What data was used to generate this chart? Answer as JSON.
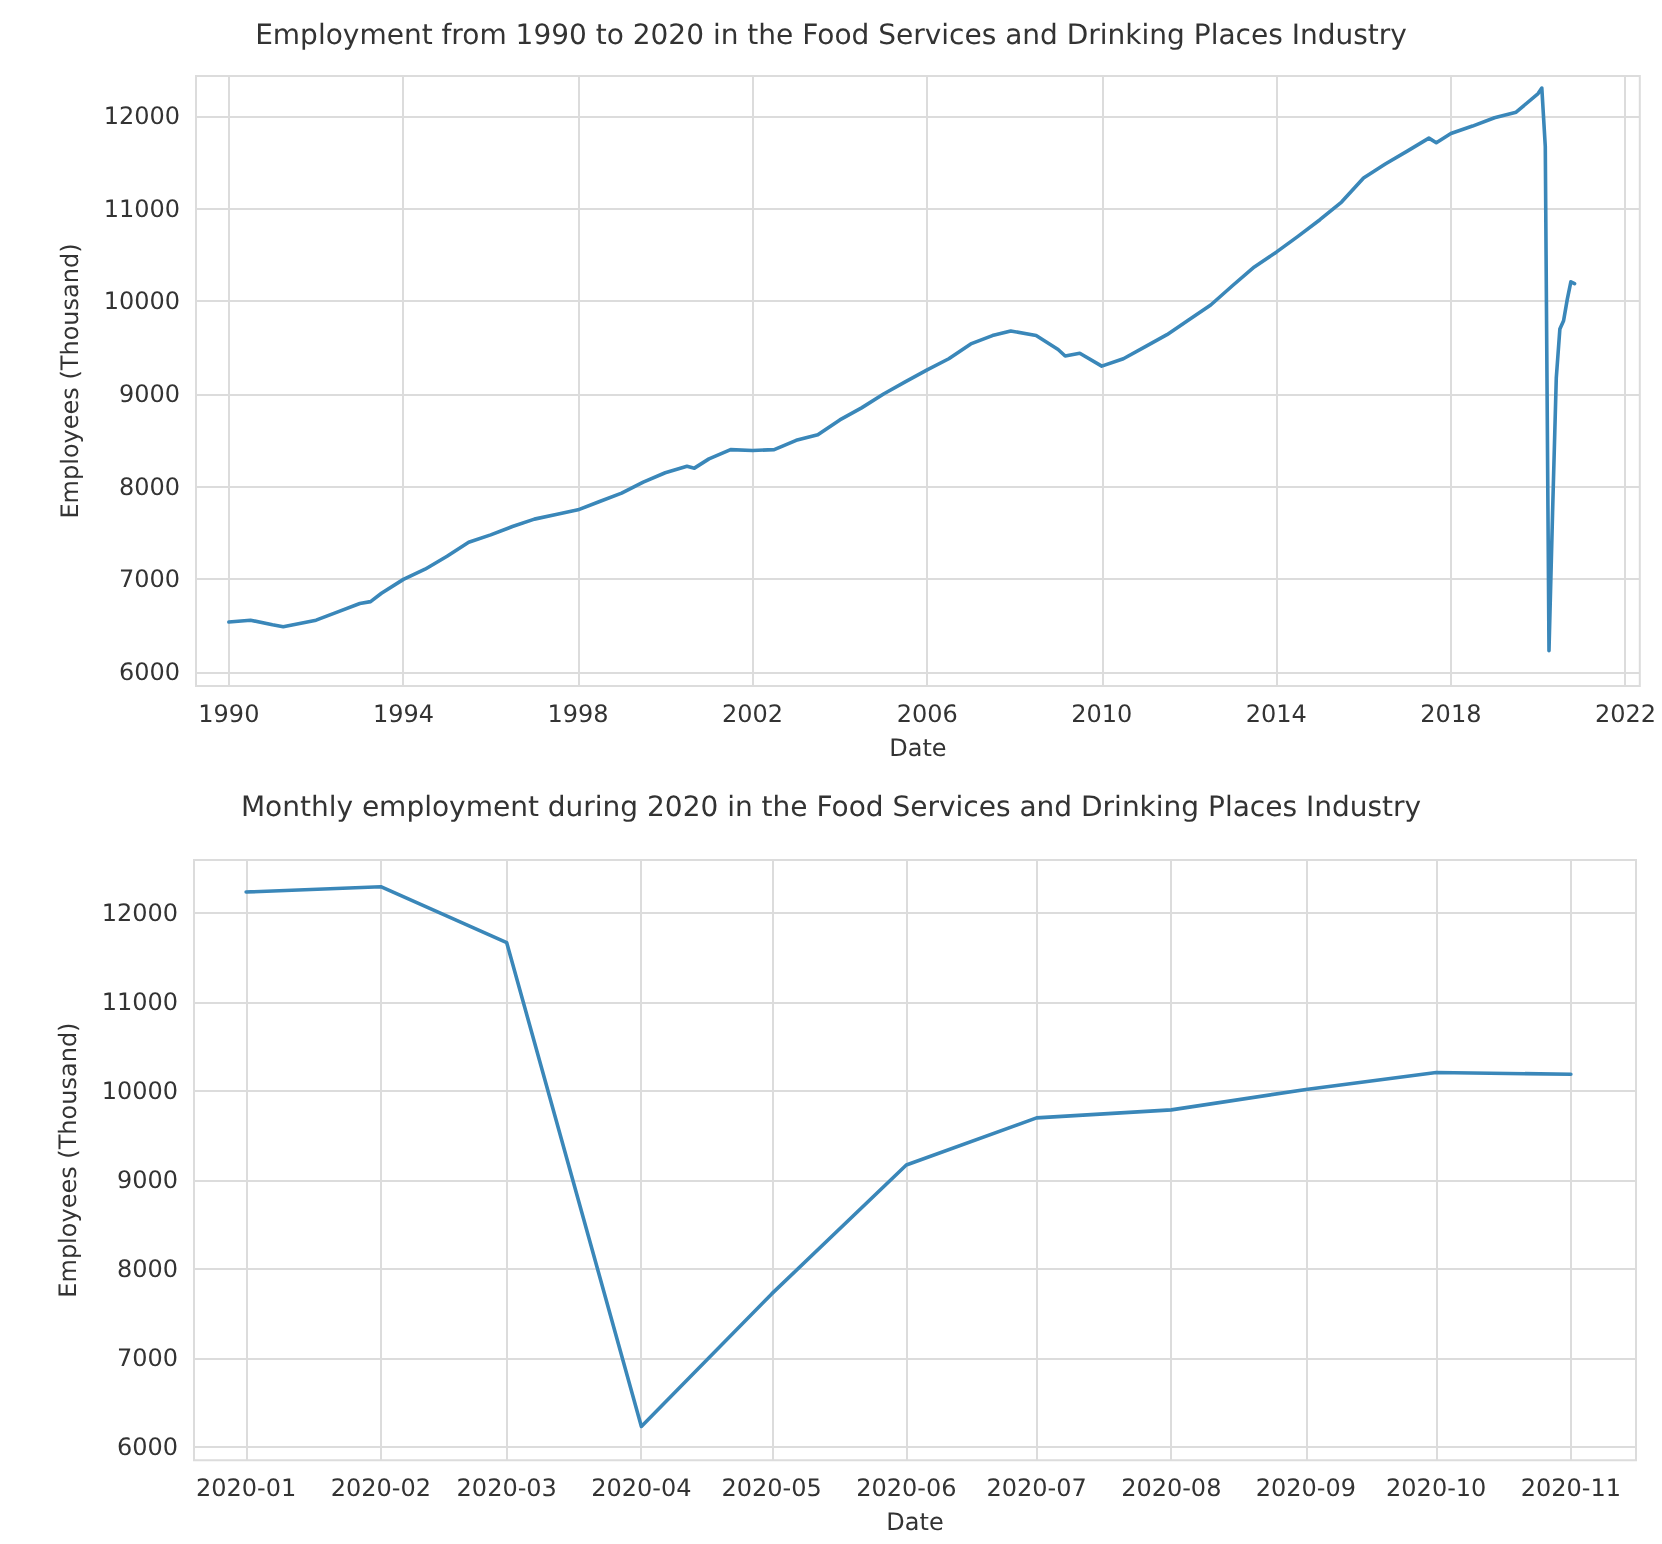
{
  "chart_data": [
    {
      "type": "line",
      "title": "Employment from 1990 to 2020 in the Food Services and Drinking Places Industry",
      "xlabel": "Date",
      "ylabel": "Employees (Thousand)",
      "x": [
        "1990-01",
        "1990-07",
        "1991-01",
        "1991-04",
        "1992-01",
        "1992-07",
        "1993-01",
        "1993-04",
        "1993-07",
        "1994-01",
        "1994-07",
        "1995-01",
        "1995-07",
        "1996-01",
        "1996-07",
        "1997-01",
        "1997-07",
        "1998-01",
        "1998-07",
        "1999-01",
        "1999-07",
        "2000-01",
        "2000-07",
        "2000-09",
        "2001-01",
        "2001-07",
        "2002-01",
        "2002-07",
        "2003-01",
        "2003-07",
        "2004-01",
        "2004-07",
        "2005-01",
        "2005-07",
        "2006-01",
        "2006-07",
        "2007-01",
        "2007-07",
        "2007-12",
        "2008-07",
        "2009-01",
        "2009-03",
        "2009-07",
        "2010-01",
        "2010-07",
        "2011-01",
        "2011-07",
        "2012-01",
        "2012-07",
        "2013-01",
        "2013-07",
        "2014-01",
        "2014-07",
        "2015-01",
        "2015-07",
        "2016-01",
        "2016-07",
        "2017-01",
        "2017-07",
        "2017-09",
        "2018-01",
        "2018-07",
        "2019-01",
        "2019-07",
        "2020-01",
        "2020-02",
        "2020-03",
        "2020-04",
        "2020-05",
        "2020-06",
        "2020-07",
        "2020-08",
        "2020-09",
        "2020-10",
        "2020-11"
      ],
      "series": [
        {
          "color": "#3a87b9",
          "values": [
            6540,
            6560,
            6510,
            6490,
            6560,
            6650,
            6740,
            6760,
            6850,
            7000,
            7110,
            7250,
            7400,
            7480,
            7570,
            7650,
            7700,
            7750,
            7840,
            7930,
            8050,
            8150,
            8220,
            8200,
            8300,
            8400,
            8390,
            8400,
            8500,
            8560,
            8720,
            8850,
            9000,
            9130,
            9260,
            9380,
            9540,
            9630,
            9680,
            9630,
            9480,
            9410,
            9440,
            9300,
            9380,
            9510,
            9640,
            9800,
            9960,
            10170,
            10370,
            10530,
            10700,
            10880,
            11070,
            11330,
            11480,
            11620,
            11760,
            11710,
            11810,
            11890,
            11980,
            12040,
            12240,
            12300,
            11670,
            6230,
            7720,
            9170,
            9700,
            9790,
            10020,
            10210,
            10190
          ]
        }
      ],
      "xlim": [
        "1989-04",
        "2022-05"
      ],
      "xticks": [
        "1990",
        "1994",
        "1998",
        "2002",
        "2006",
        "2010",
        "2014",
        "2018",
        "2022"
      ],
      "ylim": [
        5850,
        12430
      ],
      "yticks": [
        6000,
        7000,
        8000,
        9000,
        10000,
        11000,
        12000
      ],
      "grid": true,
      "marker": "none",
      "line_style": "solid"
    },
    {
      "type": "line",
      "title": "Monthly employment during 2020 in the Food Services and Drinking Places Industry",
      "xlabel": "Date",
      "ylabel": "Employees (Thousand)",
      "x": [
        "2020-01",
        "2020-02",
        "2020-03",
        "2020-04",
        "2020-05",
        "2020-06",
        "2020-07",
        "2020-08",
        "2020-09",
        "2020-10",
        "2020-11"
      ],
      "xlim": [
        "2019-12-20",
        "2020-11-16"
      ],
      "xticks": [
        "2020-01",
        "2020-02",
        "2020-03",
        "2020-04",
        "2020-05",
        "2020-06",
        "2020-07",
        "2020-08",
        "2020-09",
        "2020-10",
        "2020-11"
      ],
      "series": [
        {
          "color": "#3a87b9",
          "values": [
            12240,
            12300,
            11670,
            6230,
            7720,
            9170,
            9700,
            9790,
            10020,
            10210,
            10190
          ]
        }
      ],
      "ylim": [
        5850,
        12600
      ],
      "yticks": [
        6000,
        7000,
        8000,
        9000,
        10000,
        11000,
        12000
      ],
      "grid": true,
      "marker": "none",
      "line_style": "solid"
    }
  ]
}
